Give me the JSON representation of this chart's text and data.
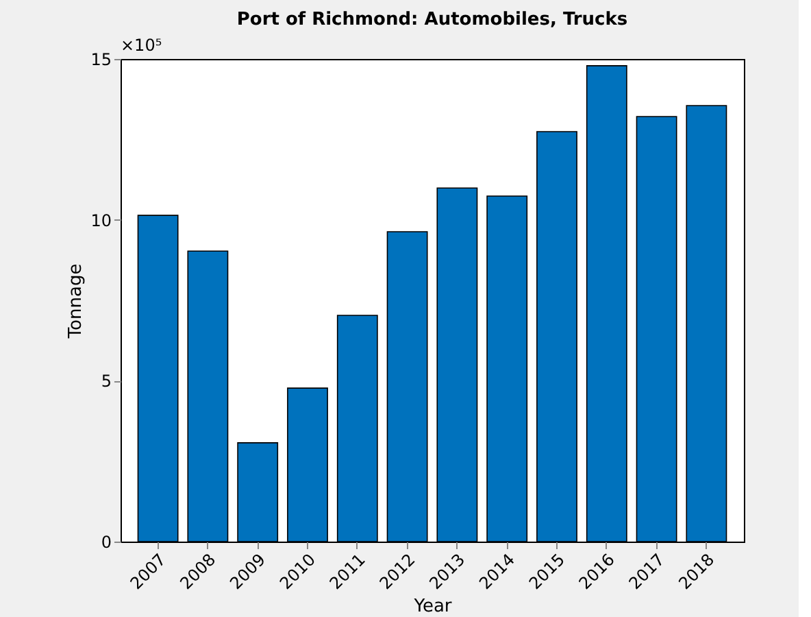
{
  "chart_data": {
    "type": "bar",
    "title": "Port of Richmond: Automobiles, Trucks",
    "xlabel": "Year",
    "ylabel": "Tonnage",
    "categories": [
      "2007",
      "2008",
      "2009",
      "2010",
      "2011",
      "2012",
      "2013",
      "2014",
      "2015",
      "2016",
      "2017",
      "2018"
    ],
    "values": [
      10.14,
      9.03,
      3.07,
      4.77,
      7.03,
      9.63,
      10.99,
      10.74,
      12.74,
      14.79,
      13.21,
      13.55
    ],
    "color": "#0072bd",
    "ylim": [
      0,
      15
    ],
    "yticks": [
      0,
      5,
      10,
      15
    ],
    "grid": false,
    "annotations": [
      "×10⁵"
    ]
  }
}
